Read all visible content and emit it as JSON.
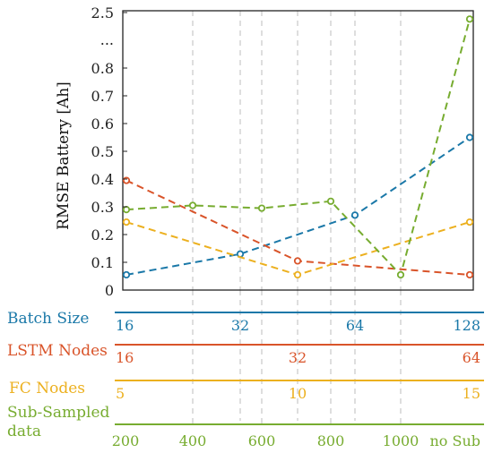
{
  "chart_data": {
    "type": "line",
    "ylabel": "RMSE Battery [Ah]",
    "y_ticks": [
      "2.5",
      "...",
      "0.8",
      "0.7",
      "0.6",
      "0.5",
      "0.4",
      "0.3",
      "0.2",
      "0.1",
      "0"
    ],
    "y_scale": "broken axis: 0 to 0.8 linear, then break ('...') up to 2.5",
    "grid": "dashed vertical lines at main x ticks",
    "x_axes": [
      {
        "name": "Batch Size",
        "color": "#1a78a8",
        "ticks": [
          "16",
          "32",
          "64",
          "128"
        ],
        "points": [
          {
            "x": "16",
            "y": 0.055
          },
          {
            "x": "32",
            "y": 0.13
          },
          {
            "x": "64",
            "y": 0.27
          },
          {
            "x": "128",
            "y": 0.55
          }
        ]
      },
      {
        "name": "LSTM Nodes",
        "color": "#d9542a",
        "ticks": [
          "16",
          "32",
          "64"
        ],
        "points": [
          {
            "x": "16",
            "y": 0.395
          },
          {
            "x": "32",
            "y": 0.105
          },
          {
            "x": "64",
            "y": 0.055
          }
        ]
      },
      {
        "name": "FC Nodes",
        "color": "#ecb01f",
        "ticks": [
          "5",
          "10",
          "15"
        ],
        "points": [
          {
            "x": "5",
            "y": 0.245
          },
          {
            "x": "10",
            "y": 0.055
          },
          {
            "x": "15",
            "y": 0.245
          }
        ]
      },
      {
        "name": "Sub-Sampled data",
        "color": "#77ac30",
        "ticks": [
          "200",
          "400",
          "600",
          "800",
          "1000",
          "no Sub"
        ],
        "points": [
          {
            "x": "200",
            "y": 0.29
          },
          {
            "x": "400",
            "y": 0.305
          },
          {
            "x": "600",
            "y": 0.295
          },
          {
            "x": "800",
            "y": 0.32
          },
          {
            "x": "1000",
            "y": 0.055
          },
          {
            "x": "no Sub",
            "y": 2.3
          }
        ]
      }
    ]
  }
}
